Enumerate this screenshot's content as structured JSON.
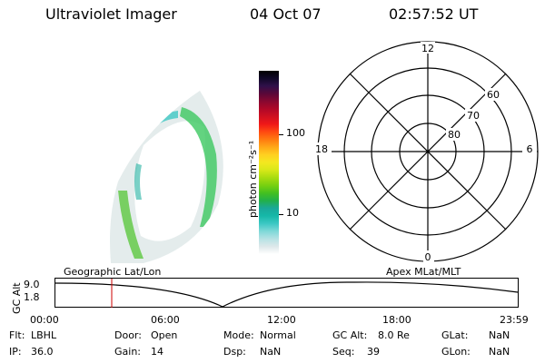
{
  "header": {
    "title": "Ultraviolet Imager",
    "date": "04 Oct 07",
    "time": "02:57:52 UT"
  },
  "colorbar": {
    "label": "photon cm⁻²s⁻¹",
    "tick_labels": [
      "100",
      "10"
    ],
    "colors": [
      "#ffffff",
      "#dde8ea",
      "#b5e2e4",
      "#7fd8d8",
      "#3cc8c4",
      "#16b8a8",
      "#1aa89a",
      "#22b04a",
      "#44c020",
      "#78d010",
      "#a8dc10",
      "#d8e818",
      "#f4e820",
      "#ffd020",
      "#ffa818",
      "#ff7a10",
      "#ff4a10",
      "#f01818",
      "#d01020",
      "#b00828",
      "#880830",
      "#5a0838",
      "#30104a",
      "#100828",
      "#000000"
    ]
  },
  "polar": {
    "mlt_labels": {
      "top": "12",
      "left": "18",
      "right": "6",
      "bottom": "0"
    },
    "lat_labels": [
      "60",
      "70",
      "80"
    ]
  },
  "track": {
    "left_label": "Geographic Lat/Lon",
    "right_label": "Apex MLat/MLT",
    "axis_label": "GC Alt",
    "y_ticks": [
      "9.0",
      "1.8"
    ],
    "x_ticks": [
      "00:00",
      "06:00",
      "12:00",
      "18:00",
      "23:59"
    ],
    "marker_color": "#cc0000"
  },
  "status": [
    {
      "k1": "Flt:",
      "v1": "LBHL",
      "k2": "Door:",
      "v2": "Open",
      "k3": "Mode:",
      "v3": "Normal",
      "k4": "GC Alt:",
      "v4": "8.0 Re",
      "k5": "GLat:",
      "v5": "NaN"
    },
    {
      "k1": "IP:",
      "v1": "36.0",
      "k2": "Gain:",
      "v2": "14",
      "k3": "Dsp:",
      "v3": "NaN",
      "k4": "Seq:",
      "v4": "39",
      "k5": "GLon:",
      "v5": "NaN"
    }
  ]
}
